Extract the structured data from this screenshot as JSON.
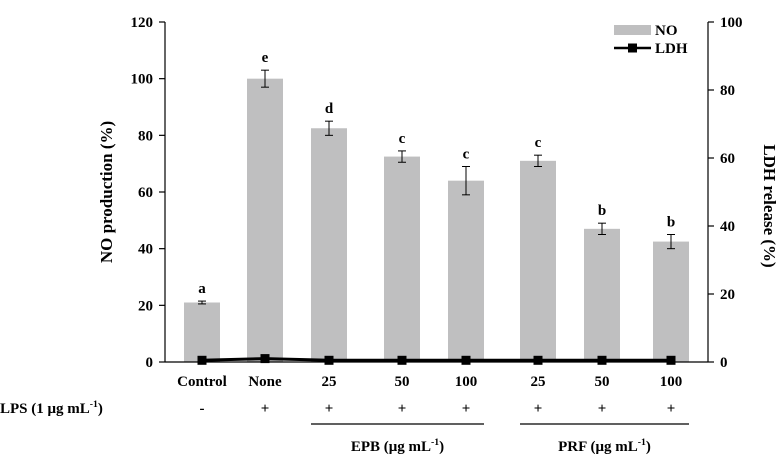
{
  "chart_data": {
    "type": "bar",
    "categories": [
      "Control",
      "None",
      "25",
      "50",
      "100",
      "25",
      "50",
      "100"
    ],
    "series": [
      {
        "name": "NO",
        "axis": "left",
        "values": [
          21,
          100,
          82.5,
          72.5,
          64,
          71,
          47,
          42.5
        ],
        "errors": [
          0.5,
          3,
          2.5,
          2,
          5,
          2,
          2,
          2.5
        ],
        "letters": [
          "a",
          "e",
          "d",
          "c",
          "c",
          "c",
          "b",
          "b"
        ],
        "color": "#bfbfc0"
      },
      {
        "name": "LDH",
        "axis": "right",
        "type": "line",
        "values": [
          0.5,
          1,
          0.5,
          0.5,
          0.5,
          0.5,
          0.5,
          0.5
        ],
        "color": "#000000"
      }
    ],
    "ylabel": "NO production (%)",
    "ylim": [
      0,
      120
    ],
    "yticks": [
      0,
      20,
      40,
      60,
      80,
      100,
      120
    ],
    "y2label": "LDH release (%)",
    "y2lim": [
      0,
      100
    ],
    "y2ticks": [
      0,
      20,
      40,
      60,
      80,
      100
    ],
    "legend_position": "top-right",
    "grid": false
  },
  "lps": {
    "label_prefix": "LPS (1 μg mL",
    "label_sup": "-1",
    "label_suffix": ")",
    "signs": [
      "-",
      "+",
      "+",
      "+",
      "+",
      "+",
      "+",
      "+"
    ]
  },
  "groups": [
    {
      "prefix": "EPB (μg mL",
      "sup": "-1",
      "suffix": ")",
      "from": 2,
      "to": 4
    },
    {
      "prefix": "PRF (μg mL",
      "sup": "-1",
      "suffix": ")",
      "from": 5,
      "to": 7
    }
  ],
  "colors": {
    "bar": "#bfbfc0",
    "line": "#000000"
  }
}
